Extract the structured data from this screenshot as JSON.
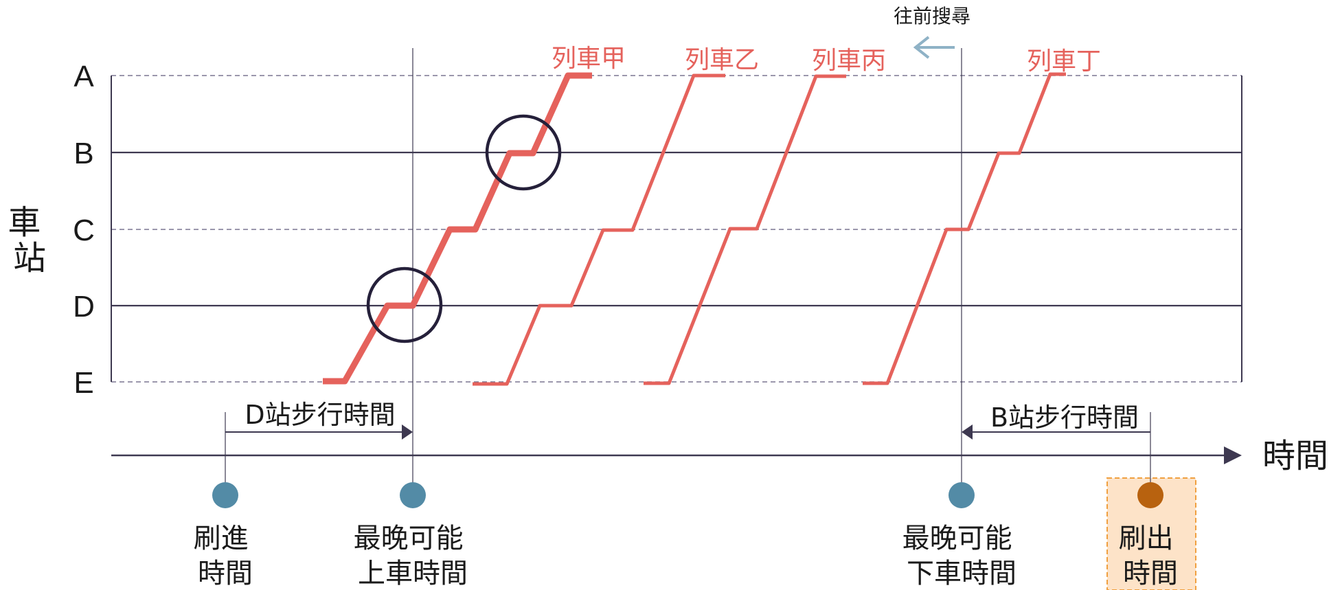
{
  "y_axis_label": "車站",
  "x_axis_label": "時間",
  "stations": [
    "A",
    "B",
    "C",
    "D",
    "E"
  ],
  "search_direction_label": "往前搜尋",
  "trains": [
    {
      "name": "列車甲",
      "highlighted": true
    },
    {
      "name": "列車乙",
      "highlighted": false
    },
    {
      "name": "列車丙",
      "highlighted": false
    },
    {
      "name": "列車丁",
      "highlighted": false
    }
  ],
  "walk_labels": {
    "entry": "D站步行時間",
    "exit": "B站步行時間"
  },
  "time_markers": [
    {
      "label_line1": "刷進",
      "label_line2": "時間"
    },
    {
      "label_line1": "最晚可能",
      "label_line2": "上車時間"
    },
    {
      "label_line1": "最晚可能",
      "label_line2": "下車時間"
    },
    {
      "label_line1": "刷出",
      "label_line2": "時間"
    }
  ],
  "colors": {
    "train": "#e5625c",
    "grid": "#3d3850",
    "marker": "#538ba6",
    "exit_marker": "#b8620f",
    "exit_box_fill": "#fde3c8",
    "exit_box_border": "#f0a040",
    "search_arrow": "#8fb2c6",
    "text": "#1a1a1a"
  }
}
